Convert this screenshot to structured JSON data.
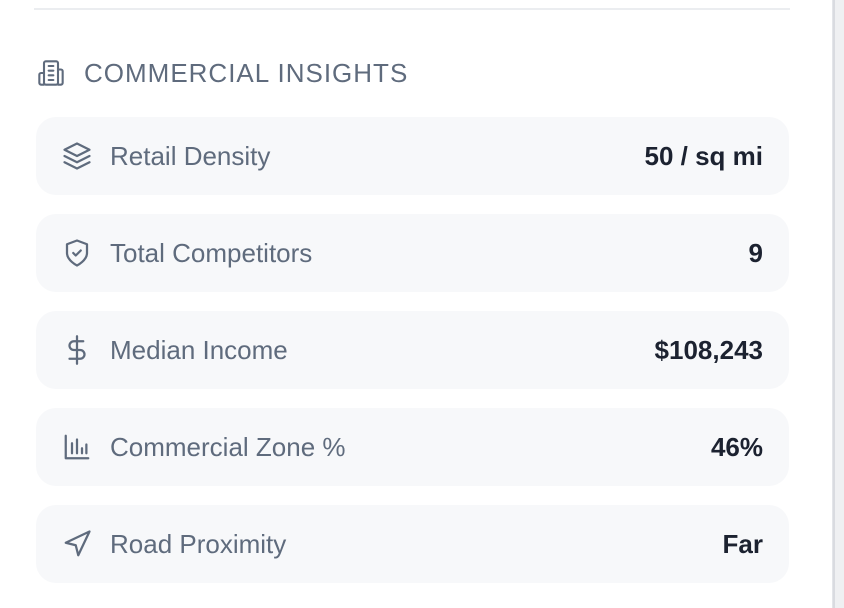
{
  "section": {
    "title": "COMMERCIAL INSIGHTS",
    "icon": "building-icon"
  },
  "metrics": [
    {
      "icon": "layers-icon",
      "label": "Retail Density",
      "value": "50 / sq mi"
    },
    {
      "icon": "shield-check-icon",
      "label": "Total Competitors",
      "value": "9"
    },
    {
      "icon": "dollar-icon",
      "label": "Median Income",
      "value": "$108,243"
    },
    {
      "icon": "bar-chart-icon",
      "label": "Commercial Zone %",
      "value": "46%"
    },
    {
      "icon": "navigation-icon",
      "label": "Road Proximity",
      "value": "Far"
    }
  ],
  "colors": {
    "label": "#5f6b7d",
    "value": "#1c2230",
    "row_background": "#f7f8fa"
  }
}
